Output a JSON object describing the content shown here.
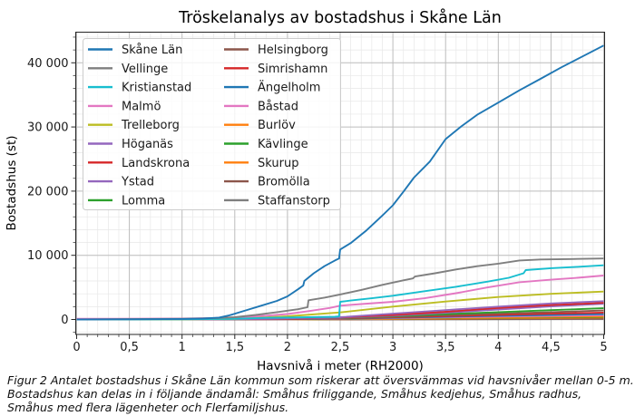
{
  "title": "Tröskelanalys av bostadshus i Skåne Län",
  "caption": {
    "lines": [
      "Figur 2 Antalet bostadshus i Skåne Län kommun som riskerar att översvämmas vid havsnivåer mellan 0-5 m.",
      "Bostadshus kan delas in i följande ändamål: Småhus friliggande, Småhus kedjehus, Småhus radhus,",
      "Småhus med flera lägenheter och Flerfamiljshus."
    ]
  },
  "chart_data": {
    "type": "line",
    "title": "Tröskelanalys av bostadshus i Skåne Län",
    "xlabel": "Havsnivå i meter (RH2000)",
    "ylabel": "Bostadshus (st)",
    "xlim": [
      0,
      5
    ],
    "ylim": [
      -2330,
      44770
    ],
    "grid": "major and minor, on",
    "legend_position": "upper left, 2 columns, white box",
    "x_major_ticks": [
      0,
      0.5,
      1,
      1.5,
      2,
      2.5,
      3,
      3.5,
      4,
      4.5,
      5
    ],
    "x_tick_labels": [
      "0",
      "0,5",
      "1",
      "1,5",
      "2",
      "2,5",
      "3",
      "3,5",
      "4",
      "4,5",
      "5"
    ],
    "x_minor_step": 0.1,
    "y_major_ticks": [
      0,
      10000,
      20000,
      30000,
      40000
    ],
    "y_tick_labels": [
      "0",
      "10 000",
      "20 000",
      "30 000",
      "40 000"
    ],
    "y_minor_step": 2000,
    "colors": {
      "blue": "#1f77b4",
      "gray": "#7f7f7f",
      "cyan": "#17becf",
      "pink": "#e377c2",
      "olive": "#bcbd22",
      "purple": "#9467bd",
      "red": "#d62728",
      "green": "#2ca02c",
      "brown": "#8c564b",
      "orange": "#ff7f0e"
    },
    "series": [
      {
        "name": "Skåne Län",
        "color": "#1f77b4",
        "points": [
          [
            0,
            0
          ],
          [
            0.5,
            30
          ],
          [
            1,
            80
          ],
          [
            1.2,
            150
          ],
          [
            1.35,
            300
          ],
          [
            1.45,
            650
          ],
          [
            1.6,
            1400
          ],
          [
            1.75,
            2150
          ],
          [
            1.9,
            2900
          ],
          [
            2.0,
            3600
          ],
          [
            2.1,
            4700
          ],
          [
            2.15,
            5300
          ],
          [
            2.16,
            6000
          ],
          [
            2.25,
            7200
          ],
          [
            2.35,
            8300
          ],
          [
            2.45,
            9200
          ],
          [
            2.49,
            9500
          ],
          [
            2.5,
            10900
          ],
          [
            2.6,
            11900
          ],
          [
            2.75,
            13900
          ],
          [
            2.9,
            16200
          ],
          [
            3.0,
            17800
          ],
          [
            3.1,
            19900
          ],
          [
            3.2,
            22100
          ],
          [
            3.35,
            24600
          ],
          [
            3.5,
            28100
          ],
          [
            3.65,
            30100
          ],
          [
            3.8,
            31900
          ],
          [
            4.0,
            33800
          ],
          [
            4.2,
            35700
          ],
          [
            4.4,
            37500
          ],
          [
            4.6,
            39300
          ],
          [
            4.8,
            41000
          ],
          [
            5.0,
            42700
          ]
        ]
      },
      {
        "name": "Vellinge",
        "color": "#7f7f7f",
        "points": [
          [
            0,
            20
          ],
          [
            0.5,
            60
          ],
          [
            1,
            120
          ],
          [
            1.3,
            200
          ],
          [
            1.5,
            350
          ],
          [
            1.7,
            700
          ],
          [
            1.9,
            1150
          ],
          [
            2.1,
            1600
          ],
          [
            2.19,
            1900
          ],
          [
            2.2,
            3000
          ],
          [
            2.35,
            3400
          ],
          [
            2.5,
            3900
          ],
          [
            2.7,
            4600
          ],
          [
            2.9,
            5400
          ],
          [
            3.1,
            6100
          ],
          [
            3.19,
            6400
          ],
          [
            3.21,
            6700
          ],
          [
            3.4,
            7200
          ],
          [
            3.6,
            7800
          ],
          [
            3.8,
            8300
          ],
          [
            4.0,
            8700
          ],
          [
            4.2,
            9200
          ],
          [
            4.4,
            9350
          ],
          [
            4.7,
            9420
          ],
          [
            5.0,
            9500
          ]
        ]
      },
      {
        "name": "Kristianstad",
        "color": "#17becf",
        "points": [
          [
            0,
            0
          ],
          [
            1,
            30
          ],
          [
            1.5,
            120
          ],
          [
            1.8,
            250
          ],
          [
            2.2,
            350
          ],
          [
            2.45,
            430
          ],
          [
            2.49,
            480
          ],
          [
            2.5,
            2750
          ],
          [
            2.6,
            2950
          ],
          [
            2.8,
            3300
          ],
          [
            3.0,
            3700
          ],
          [
            3.3,
            4400
          ],
          [
            3.6,
            5100
          ],
          [
            3.9,
            5900
          ],
          [
            4.1,
            6500
          ],
          [
            4.24,
            7200
          ],
          [
            4.26,
            7700
          ],
          [
            4.5,
            8000
          ],
          [
            4.75,
            8200
          ],
          [
            5.0,
            8450
          ]
        ]
      },
      {
        "name": "Malmö",
        "color": "#e377c2",
        "points": [
          [
            0,
            120
          ],
          [
            0.35,
            120
          ],
          [
            0.7,
            130
          ],
          [
            1.0,
            150
          ],
          [
            1.3,
            220
          ],
          [
            1.5,
            320
          ],
          [
            1.8,
            600
          ],
          [
            2.0,
            850
          ],
          [
            2.2,
            1300
          ],
          [
            2.4,
            1800
          ],
          [
            2.5,
            2150
          ],
          [
            2.7,
            2400
          ],
          [
            3.0,
            2750
          ],
          [
            3.3,
            3300
          ],
          [
            3.6,
            4100
          ],
          [
            3.9,
            5000
          ],
          [
            4.2,
            5800
          ],
          [
            4.5,
            6200
          ],
          [
            4.75,
            6500
          ],
          [
            5.0,
            6850
          ]
        ]
      },
      {
        "name": "Trelleborg",
        "color": "#bcbd22",
        "points": [
          [
            0,
            0
          ],
          [
            1,
            20
          ],
          [
            1.5,
            100
          ],
          [
            2.0,
            500
          ],
          [
            2.5,
            1100
          ],
          [
            3.0,
            2000
          ],
          [
            3.5,
            2800
          ],
          [
            4.0,
            3500
          ],
          [
            4.5,
            4000
          ],
          [
            5.0,
            4350
          ]
        ]
      },
      {
        "name": "Höganäs",
        "color": "#9467bd",
        "points": [
          [
            0,
            0
          ],
          [
            1,
            10
          ],
          [
            1.6,
            60
          ],
          [
            2.0,
            180
          ],
          [
            2.5,
            350
          ],
          [
            3.0,
            900
          ],
          [
            3.5,
            1450
          ],
          [
            4.0,
            2000
          ],
          [
            4.5,
            2500
          ],
          [
            5.0,
            2850
          ]
        ]
      },
      {
        "name": "Landskrona",
        "color": "#d62728",
        "points": [
          [
            0,
            0
          ],
          [
            1,
            10
          ],
          [
            2.0,
            120
          ],
          [
            2.5,
            330
          ],
          [
            3.0,
            700
          ],
          [
            3.5,
            1200
          ],
          [
            4.0,
            1800
          ],
          [
            4.5,
            2250
          ],
          [
            5.0,
            2600
          ]
        ]
      },
      {
        "name": "Ystad",
        "color": "#9467bd",
        "points": [
          [
            0,
            0
          ],
          [
            1,
            10
          ],
          [
            2.0,
            100
          ],
          [
            2.5,
            280
          ],
          [
            3.0,
            600
          ],
          [
            3.5,
            1050
          ],
          [
            4.0,
            1550
          ],
          [
            4.5,
            2050
          ],
          [
            5.0,
            2450
          ]
        ]
      },
      {
        "name": "Lomma",
        "color": "#2ca02c",
        "points": [
          [
            0,
            0
          ],
          [
            1,
            10
          ],
          [
            2.0,
            80
          ],
          [
            2.5,
            250
          ],
          [
            3.0,
            520
          ],
          [
            3.5,
            850
          ],
          [
            4.0,
            1150
          ],
          [
            4.5,
            1450
          ],
          [
            5.0,
            1750
          ]
        ]
      },
      {
        "name": "Helsingborg",
        "color": "#8c564b",
        "points": [
          [
            0,
            0
          ],
          [
            1,
            10
          ],
          [
            2.0,
            60
          ],
          [
            2.5,
            180
          ],
          [
            3.0,
            380
          ],
          [
            3.5,
            650
          ],
          [
            4.0,
            900
          ],
          [
            4.5,
            1150
          ],
          [
            5.0,
            1400
          ]
        ]
      },
      {
        "name": "Simrishamn",
        "color": "#d62728",
        "points": [
          [
            0,
            0
          ],
          [
            1,
            10
          ],
          [
            2.0,
            50
          ],
          [
            2.5,
            150
          ],
          [
            3.0,
            320
          ],
          [
            3.5,
            520
          ],
          [
            4.0,
            720
          ],
          [
            4.5,
            900
          ],
          [
            5.0,
            1080
          ]
        ]
      },
      {
        "name": "Ängelholm",
        "color": "#1f77b4",
        "points": [
          [
            0,
            0
          ],
          [
            1,
            10
          ],
          [
            2.0,
            40
          ],
          [
            2.5,
            120
          ],
          [
            3.0,
            250
          ],
          [
            3.5,
            420
          ],
          [
            4.0,
            570
          ],
          [
            4.5,
            700
          ],
          [
            5.0,
            830
          ]
        ]
      },
      {
        "name": "Båstad",
        "color": "#e377c2",
        "points": [
          [
            0,
            0
          ],
          [
            1,
            10
          ],
          [
            2.0,
            30
          ],
          [
            2.5,
            100
          ],
          [
            3.0,
            200
          ],
          [
            3.5,
            330
          ],
          [
            4.0,
            450
          ],
          [
            4.5,
            560
          ],
          [
            5.0,
            670
          ]
        ]
      },
      {
        "name": "Burlöv",
        "color": "#ff7f0e",
        "points": [
          [
            0,
            0
          ],
          [
            1,
            0
          ],
          [
            2.0,
            20
          ],
          [
            2.5,
            80
          ],
          [
            3.0,
            160
          ],
          [
            3.5,
            260
          ],
          [
            4.0,
            350
          ],
          [
            4.5,
            430
          ],
          [
            5.0,
            510
          ]
        ]
      },
      {
        "name": "Kävlinge",
        "color": "#2ca02c",
        "points": [
          [
            0,
            0
          ],
          [
            1,
            0
          ],
          [
            2.0,
            15
          ],
          [
            2.5,
            60
          ],
          [
            3.0,
            130
          ],
          [
            3.5,
            210
          ],
          [
            4.0,
            290
          ],
          [
            4.5,
            360
          ],
          [
            5.0,
            430
          ]
        ]
      },
      {
        "name": "Skurup",
        "color": "#ff7f0e",
        "points": [
          [
            0,
            0
          ],
          [
            1,
            0
          ],
          [
            2.0,
            10
          ],
          [
            2.5,
            40
          ],
          [
            3.0,
            90
          ],
          [
            3.5,
            150
          ],
          [
            4.0,
            210
          ],
          [
            4.5,
            260
          ],
          [
            5.0,
            310
          ]
        ]
      },
      {
        "name": "Bromölla",
        "color": "#8c564b",
        "points": [
          [
            0,
            0
          ],
          [
            1,
            0
          ],
          [
            2.5,
            15
          ],
          [
            3.0,
            35
          ],
          [
            3.5,
            60
          ],
          [
            4.0,
            85
          ],
          [
            4.5,
            105
          ],
          [
            5.0,
            130
          ]
        ]
      },
      {
        "name": "Staffanstorp",
        "color": "#7f7f7f",
        "points": [
          [
            0,
            0
          ],
          [
            1,
            0
          ],
          [
            2.5,
            5
          ],
          [
            3.0,
            10
          ],
          [
            3.5,
            20
          ],
          [
            4.2,
            30
          ],
          [
            5.0,
            45
          ]
        ]
      }
    ]
  }
}
